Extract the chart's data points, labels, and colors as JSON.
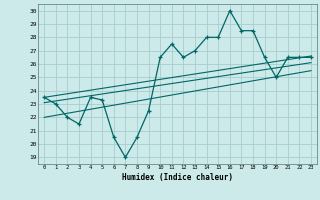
{
  "title": "",
  "xlabel": "Humidex (Indice chaleur)",
  "ylabel": "",
  "background_color": "#cceaea",
  "grid_color": "#aacccc",
  "line_color": "#006666",
  "xlim": [
    -0.5,
    23.5
  ],
  "ylim": [
    18.5,
    30.5
  ],
  "yticks": [
    19,
    20,
    21,
    22,
    23,
    24,
    25,
    26,
    27,
    28,
    29,
    30
  ],
  "xticks": [
    0,
    1,
    2,
    3,
    4,
    5,
    6,
    7,
    8,
    9,
    10,
    11,
    12,
    13,
    14,
    15,
    16,
    17,
    18,
    19,
    20,
    21,
    22,
    23
  ],
  "jagged_x": [
    0,
    1,
    2,
    3,
    4,
    5,
    6,
    7,
    8,
    9,
    10,
    11,
    12,
    13,
    14,
    15,
    16,
    17,
    18,
    19,
    20,
    21,
    22,
    23
  ],
  "jagged_y": [
    23.5,
    23.0,
    22.0,
    21.5,
    23.5,
    23.3,
    20.5,
    19.0,
    20.5,
    22.5,
    26.5,
    27.5,
    26.5,
    27.0,
    28.0,
    28.0,
    30.0,
    28.5,
    28.5,
    26.5,
    25.0,
    26.5,
    26.5,
    26.5
  ],
  "upper_line_x": [
    0,
    23
  ],
  "upper_line_y": [
    23.5,
    26.6
  ],
  "middle_line_x": [
    0,
    23
  ],
  "middle_line_y": [
    23.1,
    26.1
  ],
  "lower_line_x": [
    0,
    23
  ],
  "lower_line_y": [
    22.0,
    25.5
  ]
}
